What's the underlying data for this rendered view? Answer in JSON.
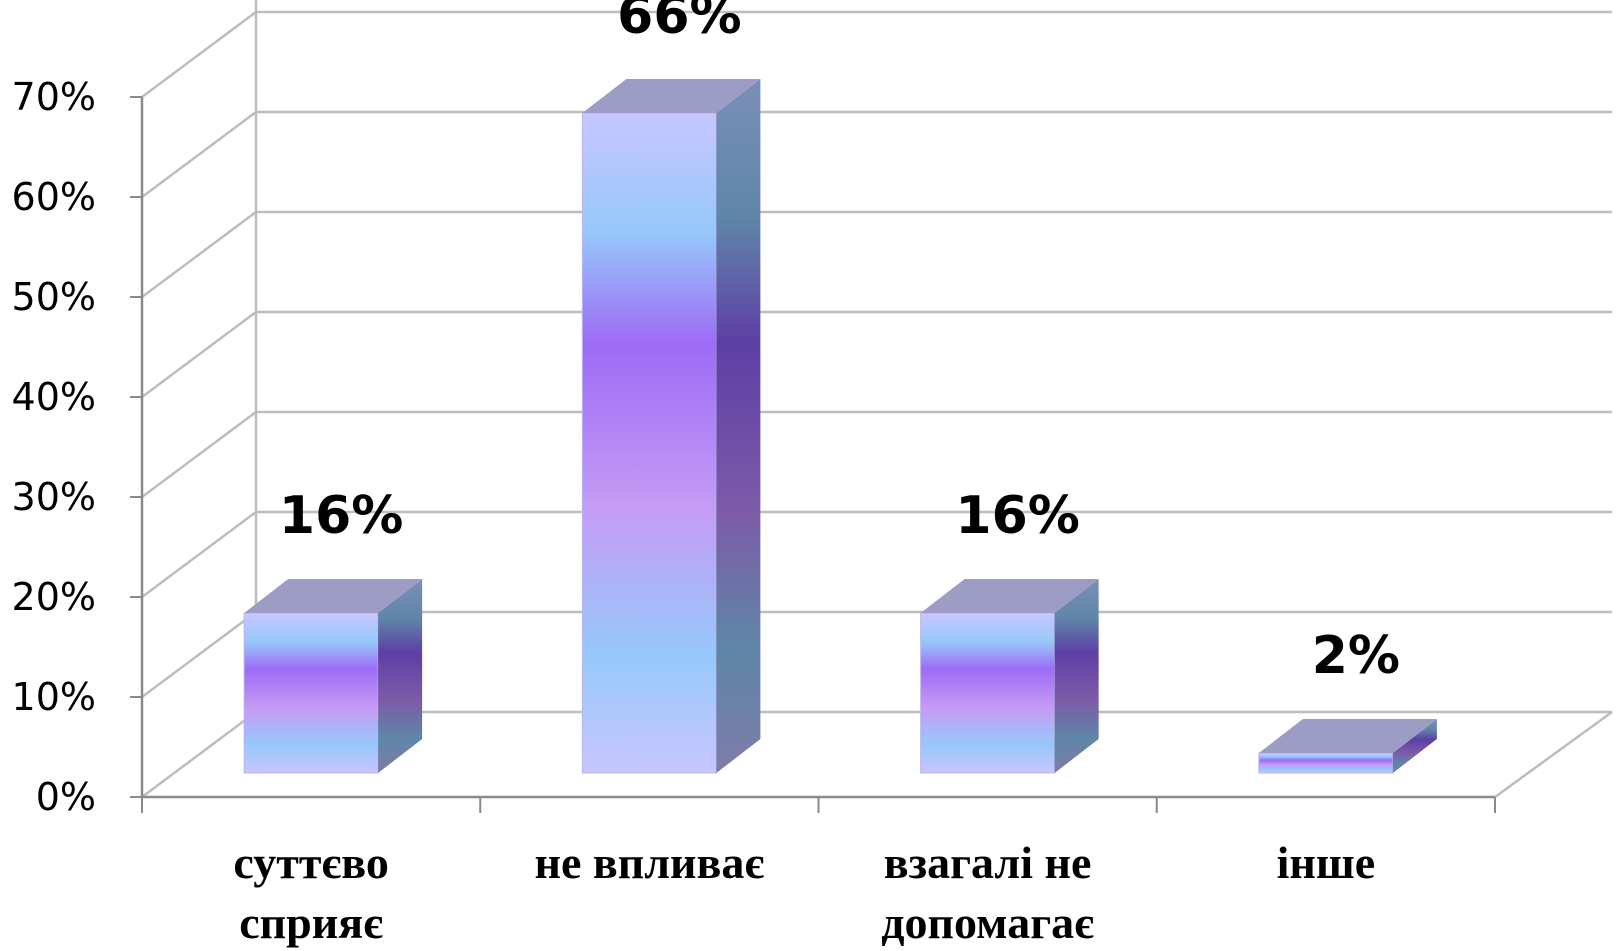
{
  "chart_data": {
    "type": "bar",
    "categories": [
      [
        "суттєво",
        "сприяє"
      ],
      [
        "не впливає"
      ],
      [
        "взагалі не",
        "допомагає"
      ],
      [
        "інше"
      ]
    ],
    "values": [
      16,
      66,
      16,
      2
    ],
    "data_labels": [
      "16%",
      "66%",
      "16%",
      "2%"
    ],
    "y_ticks": [
      "0%",
      "10%",
      "20%",
      "30%",
      "40%",
      "50%",
      "60%",
      "70%"
    ],
    "ylim": [
      0,
      70
    ],
    "grid": true,
    "style": "3d-column",
    "colors": {
      "gradient": [
        "#c8c6ff",
        "#96c8fa",
        "#9d6bf5",
        "#c59cf5",
        "#96c8fa",
        "#c8c6ff"
      ],
      "top": "#9c9cc4",
      "side_dark": "#5d4aa3",
      "side_light": "#6f8fae",
      "grid": "#bdbdbd",
      "axis": "#8a8a8a"
    }
  }
}
